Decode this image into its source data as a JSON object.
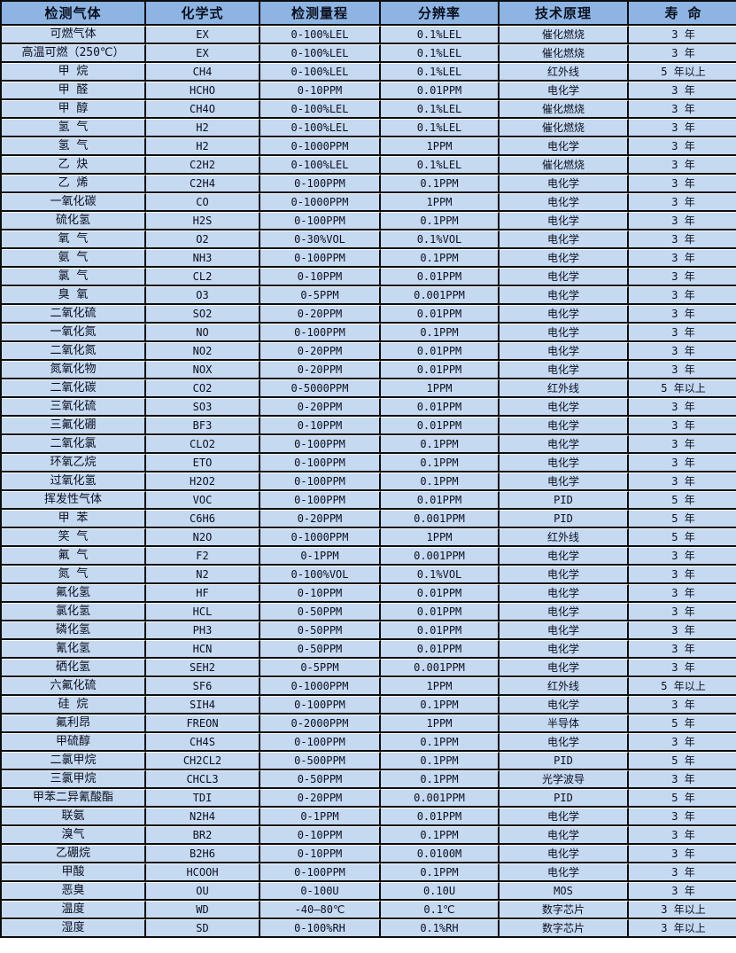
{
  "colors": {
    "header_bg": "#8DB4E2",
    "cell_bg": "#C5D9F1",
    "grid_line": "#0d0d0d",
    "row_highlight_line": "#ffffff",
    "text": "#0b1020"
  },
  "table": {
    "columns": [
      "检测气体",
      "化学式",
      "检测量程",
      "分辨率",
      "技术原理",
      "寿 命"
    ],
    "column_names": [
      "gas-name",
      "chemical-formula",
      "detection-range",
      "resolution",
      "technical-principle",
      "lifespan"
    ],
    "rows": [
      [
        "可燃气体",
        "EX",
        "0-100%LEL",
        "0.1%LEL",
        "催化燃烧",
        "3 年"
      ],
      [
        "高温可燃（250℃）",
        "EX",
        "0-100%LEL",
        "0.1%LEL",
        "催化燃烧",
        "3 年"
      ],
      [
        "甲 烷",
        "CH4",
        "0-100%LEL",
        "0.1%LEL",
        "红外线",
        "5 年以上"
      ],
      [
        "甲 醛",
        "HCHO",
        "0-10PPM",
        "0.01PPM",
        "电化学",
        "3 年"
      ],
      [
        "甲 醇",
        "CH4O",
        "0-100%LEL",
        "0.1%LEL",
        "催化燃烧",
        "3 年"
      ],
      [
        "氢 气",
        "H2",
        "0-100%LEL",
        "0.1%LEL",
        "催化燃烧",
        "3 年"
      ],
      [
        "氢 气",
        "H2",
        "0-1000PPM",
        "1PPM",
        "电化学",
        "3 年"
      ],
      [
        "乙 炔",
        "C2H2",
        "0-100%LEL",
        "0.1%LEL",
        "催化燃烧",
        "3 年"
      ],
      [
        "乙 烯",
        "C2H4",
        "0-100PPM",
        "0.1PPM",
        "电化学",
        "3 年"
      ],
      [
        "一氧化碳",
        "CO",
        "0-1000PPM",
        "1PPM",
        "电化学",
        "3 年"
      ],
      [
        "硫化氢",
        "H2S",
        "0-100PPM",
        "0.1PPM",
        "电化学",
        "3 年"
      ],
      [
        "氧 气",
        "O2",
        "0-30%VOL",
        "0.1%VOL",
        "电化学",
        "3 年"
      ],
      [
        "氨 气",
        "NH3",
        "0-100PPM",
        "0.1PPM",
        "电化学",
        "3 年"
      ],
      [
        "氯 气",
        "CL2",
        "0-10PPM",
        "0.01PPM",
        "电化学",
        "3 年"
      ],
      [
        "臭 氧",
        "O3",
        "0-5PPM",
        "0.001PPM",
        "电化学",
        "3 年"
      ],
      [
        "二氧化硫",
        "SO2",
        "0-20PPM",
        "0.01PPM",
        "电化学",
        "3 年"
      ],
      [
        "一氧化氮",
        "NO",
        "0-100PPM",
        "0.1PPM",
        "电化学",
        "3 年"
      ],
      [
        "二氧化氮",
        "NO2",
        "0-20PPM",
        "0.01PPM",
        "电化学",
        "3 年"
      ],
      [
        "氮氧化物",
        "NOX",
        "0-20PPM",
        "0.01PPM",
        "电化学",
        "3 年"
      ],
      [
        "二氧化碳",
        "CO2",
        "0-5000PPM",
        "1PPM",
        "红外线",
        "5 年以上"
      ],
      [
        "三氧化硫",
        "SO3",
        "0-20PPM",
        "0.01PPM",
        "电化学",
        "3 年"
      ],
      [
        "三氟化硼",
        "BF3",
        "0-10PPM",
        "0.01PPM",
        "电化学",
        "3 年"
      ],
      [
        "二氧化氯",
        "CLO2",
        "0-100PPM",
        "0.1PPM",
        "电化学",
        "3 年"
      ],
      [
        "环氧乙烷",
        "ETO",
        "0-100PPM",
        "0.1PPM",
        "电化学",
        "3 年"
      ],
      [
        "过氧化氢",
        "H2O2",
        "0-100PPM",
        "0.1PPM",
        "电化学",
        "3 年"
      ],
      [
        "挥发性气体",
        "VOC",
        "0-100PPM",
        "0.01PPM",
        "PID",
        "5 年"
      ],
      [
        "甲 苯",
        "C6H6",
        "0-20PPM",
        "0.001PPM",
        "PID",
        "5 年"
      ],
      [
        "笑 气",
        "N2O",
        "0-1000PPM",
        "1PPM",
        "红外线",
        "5 年"
      ],
      [
        "氟 气",
        "F2",
        "0-1PPM",
        "0.001PPM",
        "电化学",
        "3 年"
      ],
      [
        "氮 气",
        "N2",
        "0-100%VOL",
        "0.1%VOL",
        "电化学",
        "3 年"
      ],
      [
        "氟化氢",
        "HF",
        "0-10PPM",
        "0.01PPM",
        "电化学",
        "3 年"
      ],
      [
        "氯化氢",
        "HCL",
        "0-50PPM",
        "0.01PPM",
        "电化学",
        "3 年"
      ],
      [
        "磷化氢",
        "PH3",
        "0-50PPM",
        "0.01PPM",
        "电化学",
        "3 年"
      ],
      [
        "氰化氢",
        "HCN",
        "0-50PPM",
        "0.01PPM",
        "电化学",
        "3 年"
      ],
      [
        "硒化氢",
        "SEH2",
        "0-5PPM",
        "0.001PPM",
        "电化学",
        "3 年"
      ],
      [
        "六氟化硫",
        "SF6",
        "0-1000PPM",
        "1PPM",
        "红外线",
        "5 年以上"
      ],
      [
        "硅 烷",
        "SIH4",
        "0-100PPM",
        "0.1PPM",
        "电化学",
        "3 年"
      ],
      [
        "氟利昂",
        "FREON",
        "0-2000PPM",
        "1PPM",
        "半导体",
        "5 年"
      ],
      [
        "甲硫醇",
        "CH4S",
        "0-100PPM",
        "0.1PPM",
        "电化学",
        "3 年"
      ],
      [
        "二氯甲烷",
        "CH2CL2",
        "0-500PPM",
        "0.1PPM",
        "PID",
        "5 年"
      ],
      [
        "三氯甲烷",
        "CHCL3",
        "0-50PPM",
        "0.1PPM",
        "光学波导",
        "3 年"
      ],
      [
        "甲苯二异氰酸酯",
        "TDI",
        "0-20PPM",
        "0.001PPM",
        "PID",
        "5 年"
      ],
      [
        "联氨",
        "N2H4",
        "0-1PPM",
        "0.01PPM",
        "电化学",
        "3 年"
      ],
      [
        "溴气",
        "BR2",
        "0-10PPM",
        "0.1PPM",
        "电化学",
        "3 年"
      ],
      [
        "乙硼烷",
        "B2H6",
        "0-10PPM",
        "0.0100M",
        "电化学",
        "3 年"
      ],
      [
        "甲酸",
        "HCOOH",
        "0-100PPM",
        "0.1PPM",
        "电化学",
        "3 年"
      ],
      [
        "恶臭",
        "OU",
        "0-100U",
        "0.10U",
        "MOS",
        "3 年"
      ],
      [
        "温度",
        "WD",
        "-40—80℃",
        "0.1℃",
        "数字芯片",
        "3 年以上"
      ],
      [
        "湿度",
        "SD",
        "0-100%RH",
        "0.1%RH",
        "数字芯片",
        "3 年以上"
      ]
    ]
  }
}
